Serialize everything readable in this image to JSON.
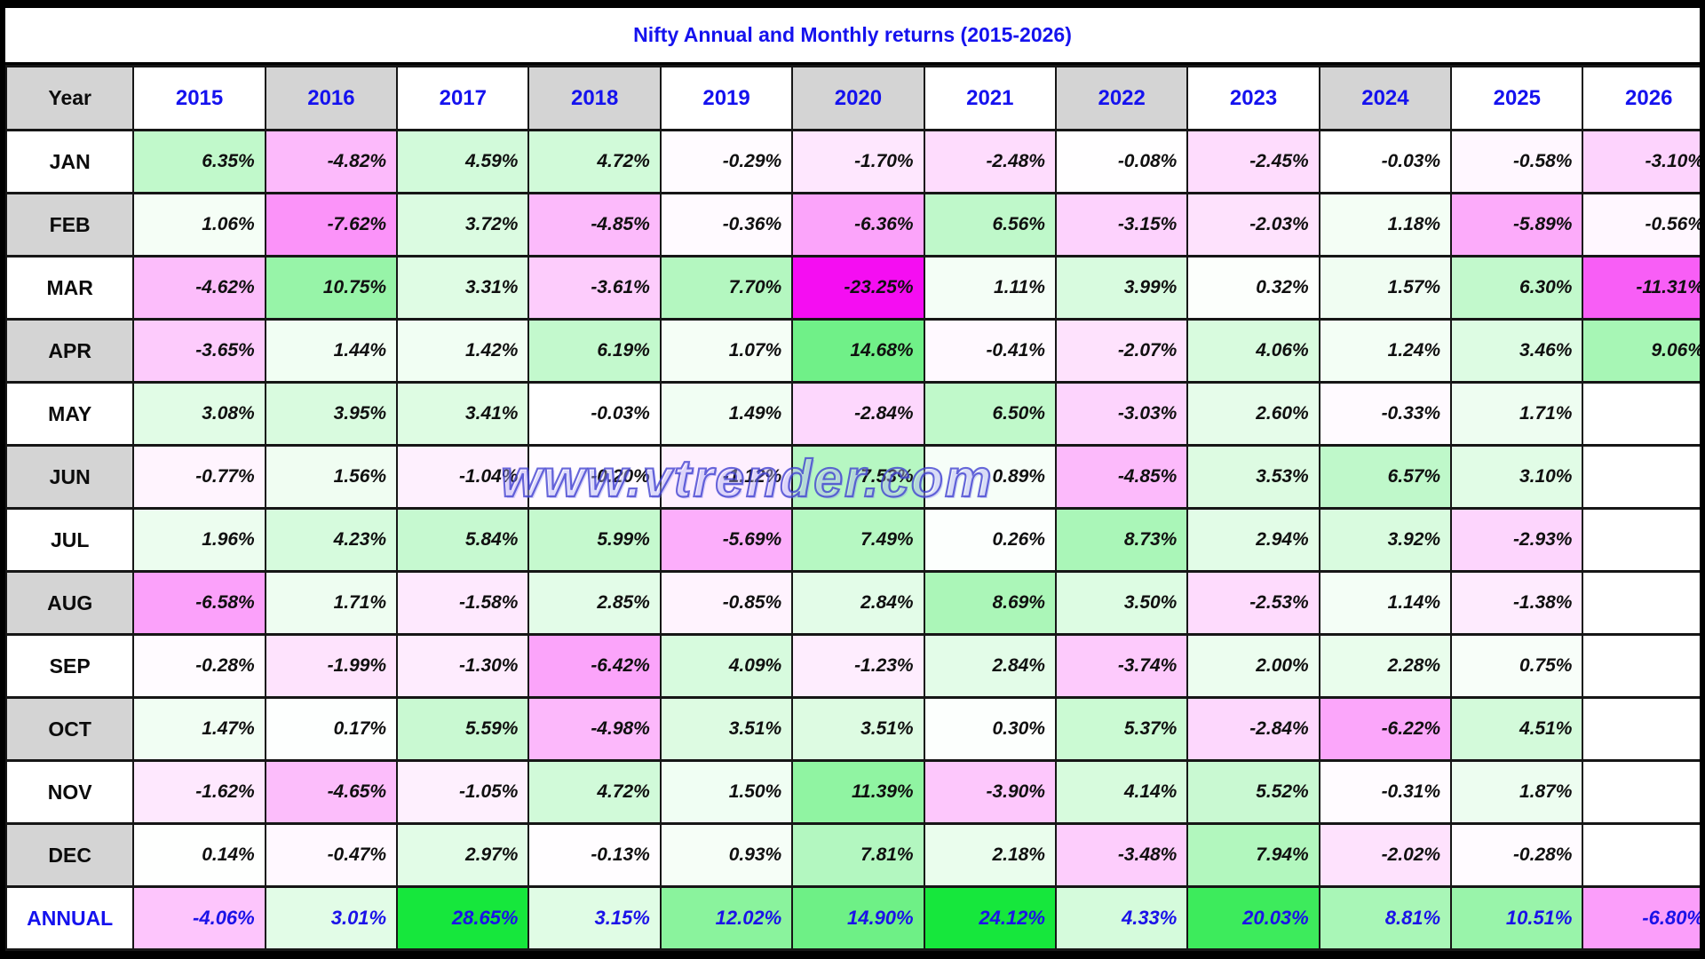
{
  "title": "Nifty Annual and Monthly returns (2015-2026)",
  "watermark": "www.vtrender.com",
  "colors": {
    "accent_blue": "#1512ee",
    "annual_text_blue": "#1b12e8",
    "header_gray": "#d4d4d4",
    "positive_max_green": "#16e73c",
    "negative_max_magenta": "#f50df2",
    "neutral_white": "#ffffff",
    "grid_black": "#161616"
  },
  "color_scale": {
    "green_full_at": 24,
    "magenta_full_at": 17
  },
  "chart_data": {
    "type": "heatmap",
    "title": "Nifty Annual and Monthly returns (2015-2026)",
    "value_format": "percent_2dp",
    "columns": [
      "Year",
      "2015",
      "2016",
      "2017",
      "2018",
      "2019",
      "2020",
      "2021",
      "2022",
      "2023",
      "2024",
      "2025",
      "2026"
    ],
    "column_shaded": [
      false,
      true,
      false,
      true,
      false,
      true,
      false,
      true,
      false,
      true,
      false,
      false
    ],
    "rows": [
      {
        "label": "JAN",
        "values": [
          6.35,
          -4.82,
          4.59,
          4.72,
          -0.29,
          -1.7,
          -2.48,
          -0.08,
          -2.45,
          -0.03,
          -0.58,
          -3.1
        ]
      },
      {
        "label": "FEB",
        "values": [
          1.06,
          -7.62,
          3.72,
          -4.85,
          -0.36,
          -6.36,
          6.56,
          -3.15,
          -2.03,
          1.18,
          -5.89,
          -0.56
        ]
      },
      {
        "label": "MAR",
        "values": [
          -4.62,
          10.75,
          3.31,
          -3.61,
          7.7,
          -23.25,
          1.11,
          3.99,
          0.32,
          1.57,
          6.3,
          -11.31
        ]
      },
      {
        "label": "APR",
        "values": [
          -3.65,
          1.44,
          1.42,
          6.19,
          1.07,
          14.68,
          -0.41,
          -2.07,
          4.06,
          1.24,
          3.46,
          9.06
        ]
      },
      {
        "label": "MAY",
        "values": [
          3.08,
          3.95,
          3.41,
          -0.03,
          1.49,
          -2.84,
          6.5,
          -3.03,
          2.6,
          -0.33,
          1.71,
          null
        ]
      },
      {
        "label": "JUN",
        "values": [
          -0.77,
          1.56,
          -1.04,
          -0.2,
          -1.12,
          7.53,
          0.89,
          -4.85,
          3.53,
          6.57,
          3.1,
          null
        ]
      },
      {
        "label": "JUL",
        "values": [
          1.96,
          4.23,
          5.84,
          5.99,
          -5.69,
          7.49,
          0.26,
          8.73,
          2.94,
          3.92,
          -2.93,
          null
        ]
      },
      {
        "label": "AUG",
        "values": [
          -6.58,
          1.71,
          -1.58,
          2.85,
          -0.85,
          2.84,
          8.69,
          3.5,
          -2.53,
          1.14,
          -1.38,
          null
        ]
      },
      {
        "label": "SEP",
        "values": [
          -0.28,
          -1.99,
          -1.3,
          -6.42,
          4.09,
          -1.23,
          2.84,
          -3.74,
          2.0,
          2.28,
          0.75,
          null
        ]
      },
      {
        "label": "OCT",
        "values": [
          1.47,
          0.17,
          5.59,
          -4.98,
          3.51,
          3.51,
          0.3,
          5.37,
          -2.84,
          -6.22,
          4.51,
          null
        ]
      },
      {
        "label": "NOV",
        "values": [
          -1.62,
          -4.65,
          -1.05,
          4.72,
          1.5,
          11.39,
          -3.9,
          4.14,
          5.52,
          -0.31,
          1.87,
          null
        ]
      },
      {
        "label": "DEC",
        "values": [
          0.14,
          -0.47,
          2.97,
          -0.13,
          0.93,
          7.81,
          2.18,
          -3.48,
          7.94,
          -2.02,
          -0.28,
          null
        ]
      },
      {
        "label": "ANNUAL",
        "values": [
          -4.06,
          3.01,
          28.65,
          3.15,
          12.02,
          14.9,
          24.12,
          4.33,
          20.03,
          8.81,
          10.51,
          -6.8
        ],
        "annual": true
      }
    ]
  }
}
